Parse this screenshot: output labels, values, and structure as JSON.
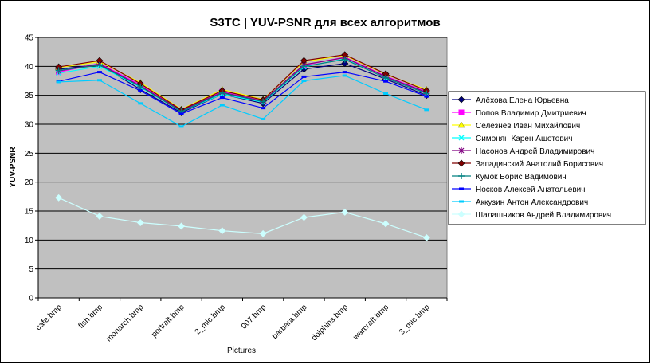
{
  "chart_data": {
    "type": "line",
    "title": "S3TC | YUV-PSNR для всех алгоритмов",
    "xlabel": "Pictures",
    "ylabel": "YUV-PSNR",
    "ylim": [
      0,
      45
    ],
    "ytick_step": 5,
    "grid": true,
    "legend_position": "right",
    "plot_background": "#c0c0c0",
    "categories": [
      "cafe.bmp",
      "fish.bmp",
      "monarch.bmp",
      "portrait.bmp",
      "2_mic.bmp",
      "007.bmp",
      "barbara.bmp",
      "dolphins.bmp",
      "warcraft.bmp",
      "3_mic.bmp"
    ],
    "series": [
      {
        "name": "Алёхова Елена Юрьевна",
        "color": "#000080",
        "marker": "diamond",
        "values": [
          39.5,
          40.3,
          36.0,
          32.0,
          35.2,
          33.6,
          39.5,
          40.5,
          37.8,
          35.0
        ]
      },
      {
        "name": "Попов Владимир Дмитриевич",
        "color": "#ff00ff",
        "marker": "square",
        "values": [
          39.0,
          40.5,
          36.8,
          32.3,
          35.6,
          34.0,
          40.2,
          41.6,
          38.3,
          35.6
        ]
      },
      {
        "name": "Селезнев Иван Михайлович",
        "color": "#ffff00",
        "marker": "triangle",
        "values": [
          39.8,
          40.8,
          37.2,
          32.6,
          36.0,
          34.3,
          40.8,
          41.9,
          38.6,
          36.0
        ]
      },
      {
        "name": "Симонян Карен Ашотович",
        "color": "#00ffff",
        "marker": "x",
        "values": [
          38.8,
          40.0,
          36.4,
          32.2,
          35.2,
          33.8,
          39.9,
          41.3,
          38.0,
          35.4
        ]
      },
      {
        "name": "Насонов Андрей Владимирович",
        "color": "#800080",
        "marker": "star",
        "values": [
          39.2,
          40.4,
          36.6,
          32.4,
          35.5,
          34.0,
          40.3,
          41.5,
          38.2,
          35.5
        ]
      },
      {
        "name": "Западинский Анатолий Борисович",
        "color": "#800000",
        "marker": "diamond",
        "values": [
          39.9,
          41.0,
          37.0,
          32.5,
          35.8,
          34.2,
          41.0,
          42.0,
          38.7,
          35.8
        ]
      },
      {
        "name": "Кумок Борис Вадимович",
        "color": "#008080",
        "marker": "plus",
        "values": [
          39.3,
          40.2,
          36.5,
          32.2,
          35.4,
          33.9,
          40.0,
          41.2,
          38.0,
          35.3
        ]
      },
      {
        "name": "Носков Алексей Анатольевич",
        "color": "#0000ff",
        "marker": "dash",
        "values": [
          37.4,
          39.0,
          35.8,
          31.8,
          34.6,
          32.8,
          38.2,
          39.0,
          37.4,
          34.8
        ]
      },
      {
        "name": "Аккузин Антон Александрович",
        "color": "#00ccff",
        "marker": "dash",
        "values": [
          37.3,
          37.6,
          33.6,
          29.6,
          33.3,
          30.9,
          37.5,
          38.4,
          35.3,
          32.5
        ]
      },
      {
        "name": "Шалашников Андрей Владимирович",
        "color": "#ccffff",
        "marker": "diamond",
        "values": [
          17.3,
          14.1,
          13.0,
          12.4,
          11.6,
          11.1,
          13.9,
          14.8,
          12.8,
          10.4
        ]
      }
    ]
  }
}
